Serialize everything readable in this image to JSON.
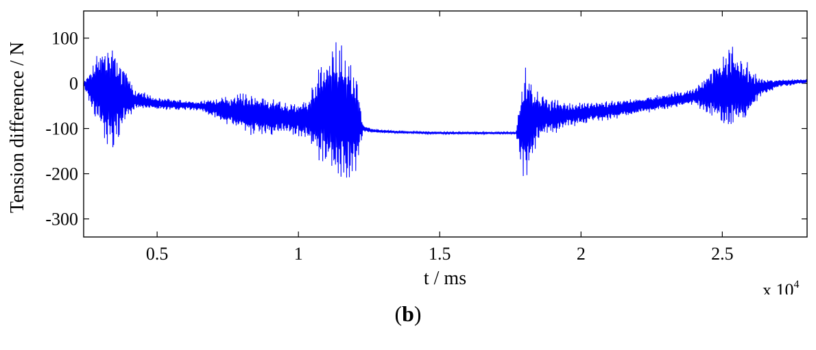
{
  "chart_data": {
    "type": "line",
    "title": "",
    "xlabel": "t / ms",
    "ylabel": "Tension difference / N",
    "x_multiplier_label": "x 10",
    "x_multiplier_exp": "4",
    "xlim": [
      2400,
      28000
    ],
    "ylim": [
      -340,
      160
    ],
    "x_ticks": [
      5000,
      10000,
      15000,
      20000,
      25000
    ],
    "x_tick_labels": [
      "0.5",
      "1",
      "1.5",
      "2",
      "2.5"
    ],
    "y_ticks": [
      100,
      0,
      -100,
      -200,
      -300
    ],
    "y_tick_labels": [
      "100",
      "0",
      "-100",
      "-200",
      "-300"
    ],
    "grid": false,
    "line_color": "#0000ff",
    "series": [
      {
        "x": [
          2400,
          3100,
          3500,
          4200,
          5000,
          6500,
          7500,
          8500,
          9500,
          10300,
          10800,
          11500,
          12000,
          12300,
          12600,
          13500,
          15000,
          16500,
          17700,
          18000,
          18500,
          19500,
          21000,
          22500,
          24000,
          25300,
          25800,
          26300,
          27000,
          28000
        ],
        "y": [
          -2,
          -20,
          -30,
          -35,
          -45,
          -50,
          -60,
          -70,
          -75,
          -80,
          -60,
          -70,
          -90,
          -100,
          -105,
          -108,
          -110,
          -110,
          -110,
          -90,
          -75,
          -70,
          -60,
          -45,
          -30,
          -10,
          -20,
          -10,
          0,
          5
        ],
        "amplitude": [
          3,
          135,
          130,
          25,
          15,
          12,
          40,
          55,
          40,
          50,
          140,
          190,
          150,
          8,
          5,
          3,
          3,
          3,
          3,
          160,
          60,
          30,
          25,
          20,
          20,
          110,
          80,
          25,
          10,
          5
        ]
      }
    ]
  },
  "caption": {
    "open": "(",
    "letter": "b",
    "close": ")"
  }
}
